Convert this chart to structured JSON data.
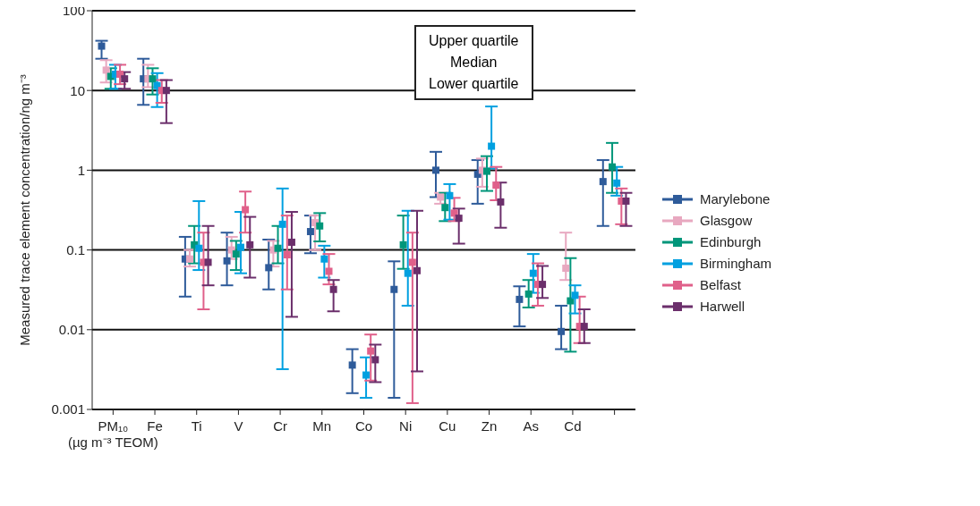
{
  "chart_data": {
    "type": "scatter",
    "ylabel": "Measured trace element concentration/ng m⁻³",
    "categories": [
      "PM₁₀\n(µg m⁻³ TEOM)",
      "Fe",
      "Ti",
      "V",
      "Cr",
      "Mn",
      "Co",
      "Ni",
      "Cu",
      "Zn",
      "As",
      "Cd",
      null
    ],
    "log": "y",
    "ylim": [
      0.001,
      100
    ],
    "yticks": [
      0.001,
      0.01,
      0.1,
      1,
      10,
      100
    ],
    "grid": "y",
    "legend": "right",
    "marker": "square",
    "annotations": [
      "Upper quartile\nMedian\nLower quartile"
    ],
    "series": [
      {
        "name": "Marylebone",
        "color": "#2e5b9a",
        "values": [
          36,
          14,
          0.077,
          0.073,
          0.06,
          0.17,
          0.0036,
          0.032,
          1.0,
          0.89,
          0.024,
          0.0095,
          0.72
        ],
        "errors": [
          [
            25,
            42
          ],
          [
            6.6,
            25
          ],
          [
            0.026,
            0.146
          ],
          [
            0.036,
            0.165
          ],
          [
            0.032,
            0.135
          ],
          [
            0.091,
            0.27
          ],
          [
            0.0016,
            0.0057
          ],
          [
            0.0014,
            0.072
          ],
          [
            0.46,
            1.7
          ],
          [
            0.38,
            1.34
          ],
          [
            0.011,
            0.035
          ],
          [
            0.0057,
            0.02
          ],
          [
            0.2,
            1.34
          ]
        ]
      },
      {
        "name": "Glasgow",
        "color": "#e8a8c0",
        "values": [
          18,
          14,
          0.077,
          0.1,
          0.1,
          0.22,
          null,
          null,
          0.46,
          1.0,
          null,
          0.059,
          null
        ],
        "errors": [
          [
            12.6,
            24
          ],
          [
            11,
            21
          ],
          [
            0.062,
            0.1
          ],
          [
            0.077,
            0.146
          ],
          [
            0.062,
            0.13
          ],
          [
            0.1,
            0.27
          ],
          null,
          null,
          [
            0.38,
            0.52
          ],
          [
            0.62,
            1.4
          ],
          null,
          [
            0.042,
            0.165
          ],
          null
        ]
      },
      {
        "name": "Edinburgh",
        "color": "#00967a",
        "values": [
          15,
          14,
          0.116,
          0.089,
          0.105,
          0.2,
          null,
          0.116,
          0.34,
          0.97,
          0.028,
          0.023,
          1.1
        ],
        "errors": [
          [
            10.5,
            19
          ],
          [
            8.9,
            19
          ],
          [
            0.068,
            0.2
          ],
          [
            0.056,
            0.13
          ],
          [
            0.068,
            0.2
          ],
          [
            0.128,
            0.29
          ],
          null,
          [
            0.058,
            0.27
          ],
          [
            0.23,
            0.52
          ],
          [
            0.55,
            1.5
          ],
          [
            0.019,
            0.042
          ],
          [
            0.0053,
            0.079
          ],
          [
            0.52,
            2.2
          ]
        ]
      },
      {
        "name": "Birmingham",
        "color": "#00a0e0",
        "values": [
          16,
          11.5,
          0.105,
          0.108,
          0.21,
          0.077,
          0.0027,
          0.051,
          0.48,
          2.0,
          0.051,
          0.027,
          0.69
        ],
        "errors": [
          [
            10.5,
            21
          ],
          [
            6.2,
            16.5
          ],
          [
            0.056,
            0.41
          ],
          [
            0.051,
            0.3
          ],
          [
            0.0032,
            0.59
          ],
          [
            0.045,
            0.113
          ],
          [
            0.0014,
            0.0045
          ],
          [
            0.02,
            0.31
          ],
          [
            0.24,
            0.67
          ],
          [
            1.05,
            6.3
          ],
          [
            0.029,
            0.089
          ],
          [
            0.016,
            0.036
          ],
          [
            0.48,
            1.1
          ]
        ]
      },
      {
        "name": "Belfast",
        "color": "#e0608a",
        "values": [
          16,
          10,
          0.07,
          0.32,
          0.087,
          0.054,
          0.0054,
          0.07,
          0.29,
          0.65,
          0.037,
          0.011,
          0.41
        ],
        "errors": [
          [
            12,
            21
          ],
          [
            7,
            13.5
          ],
          [
            0.018,
            0.165
          ],
          [
            0.165,
            0.54
          ],
          [
            0.032,
            0.27
          ],
          [
            0.037,
            0.089
          ],
          [
            0.0023,
            0.0087
          ],
          [
            0.0012,
            0.165
          ],
          [
            0.23,
            0.45
          ],
          [
            0.42,
            1.1
          ],
          [
            0.02,
            0.068
          ],
          [
            0.0068,
            0.026
          ],
          [
            0.21,
            0.59
          ]
        ]
      },
      {
        "name": "Harwell",
        "color": "#6b2f6b",
        "values": [
          14,
          10,
          0.07,
          0.116,
          0.125,
          0.032,
          0.0042,
          0.055,
          0.25,
          0.4,
          0.037,
          0.011,
          0.41
        ],
        "errors": [
          [
            10.5,
            17
          ],
          [
            3.9,
            13.5
          ],
          [
            0.036,
            0.2
          ],
          [
            0.045,
            0.26
          ],
          [
            0.0145,
            0.3
          ],
          [
            0.017,
            0.042
          ],
          [
            0.0022,
            0.0065
          ],
          [
            0.003,
            0.31
          ],
          [
            0.12,
            0.33
          ],
          [
            0.19,
            0.7
          ],
          [
            0.025,
            0.063
          ],
          [
            0.0068,
            0.018
          ],
          [
            0.2,
            0.52
          ]
        ]
      }
    ]
  }
}
